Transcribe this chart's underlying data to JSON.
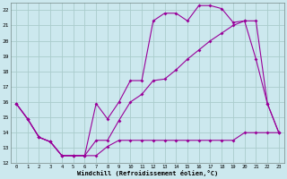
{
  "xlabel": "Windchill (Refroidissement éolien,°C)",
  "bg_color": "#cce8ee",
  "line_color": "#990099",
  "grid_color": "#aacccc",
  "hours": [
    0,
    1,
    2,
    3,
    4,
    5,
    6,
    7,
    8,
    9,
    10,
    11,
    12,
    13,
    14,
    15,
    16,
    17,
    18,
    19,
    20,
    21,
    22,
    23
  ],
  "curve_temp": [
    15.9,
    14.9,
    13.7,
    13.4,
    12.5,
    12.5,
    12.5,
    15.9,
    14.9,
    16.0,
    17.4,
    17.4,
    21.3,
    21.8,
    21.8,
    21.3,
    22.3,
    22.3,
    22.1,
    21.2,
    21.3,
    18.8,
    15.9,
    14.0
  ],
  "curve_wc": [
    15.9,
    14.9,
    13.7,
    13.4,
    12.5,
    12.5,
    12.5,
    12.5,
    13.1,
    13.5,
    13.5,
    13.5,
    13.5,
    13.5,
    13.5,
    13.5,
    13.5,
    13.5,
    13.5,
    13.5,
    14.0,
    14.0,
    14.0,
    14.0
  ],
  "curve_app": [
    15.9,
    14.9,
    13.7,
    13.4,
    12.5,
    12.5,
    12.5,
    13.5,
    13.5,
    14.8,
    16.0,
    16.5,
    17.4,
    17.5,
    18.1,
    18.8,
    19.4,
    20.0,
    20.5,
    21.0,
    21.3,
    21.3,
    15.9,
    14.0
  ],
  "ylim_min": 12,
  "ylim_max": 22.5,
  "xlim_min": 0,
  "xlim_max": 23,
  "yticks": [
    12,
    13,
    14,
    15,
    16,
    17,
    18,
    19,
    20,
    21,
    22
  ]
}
